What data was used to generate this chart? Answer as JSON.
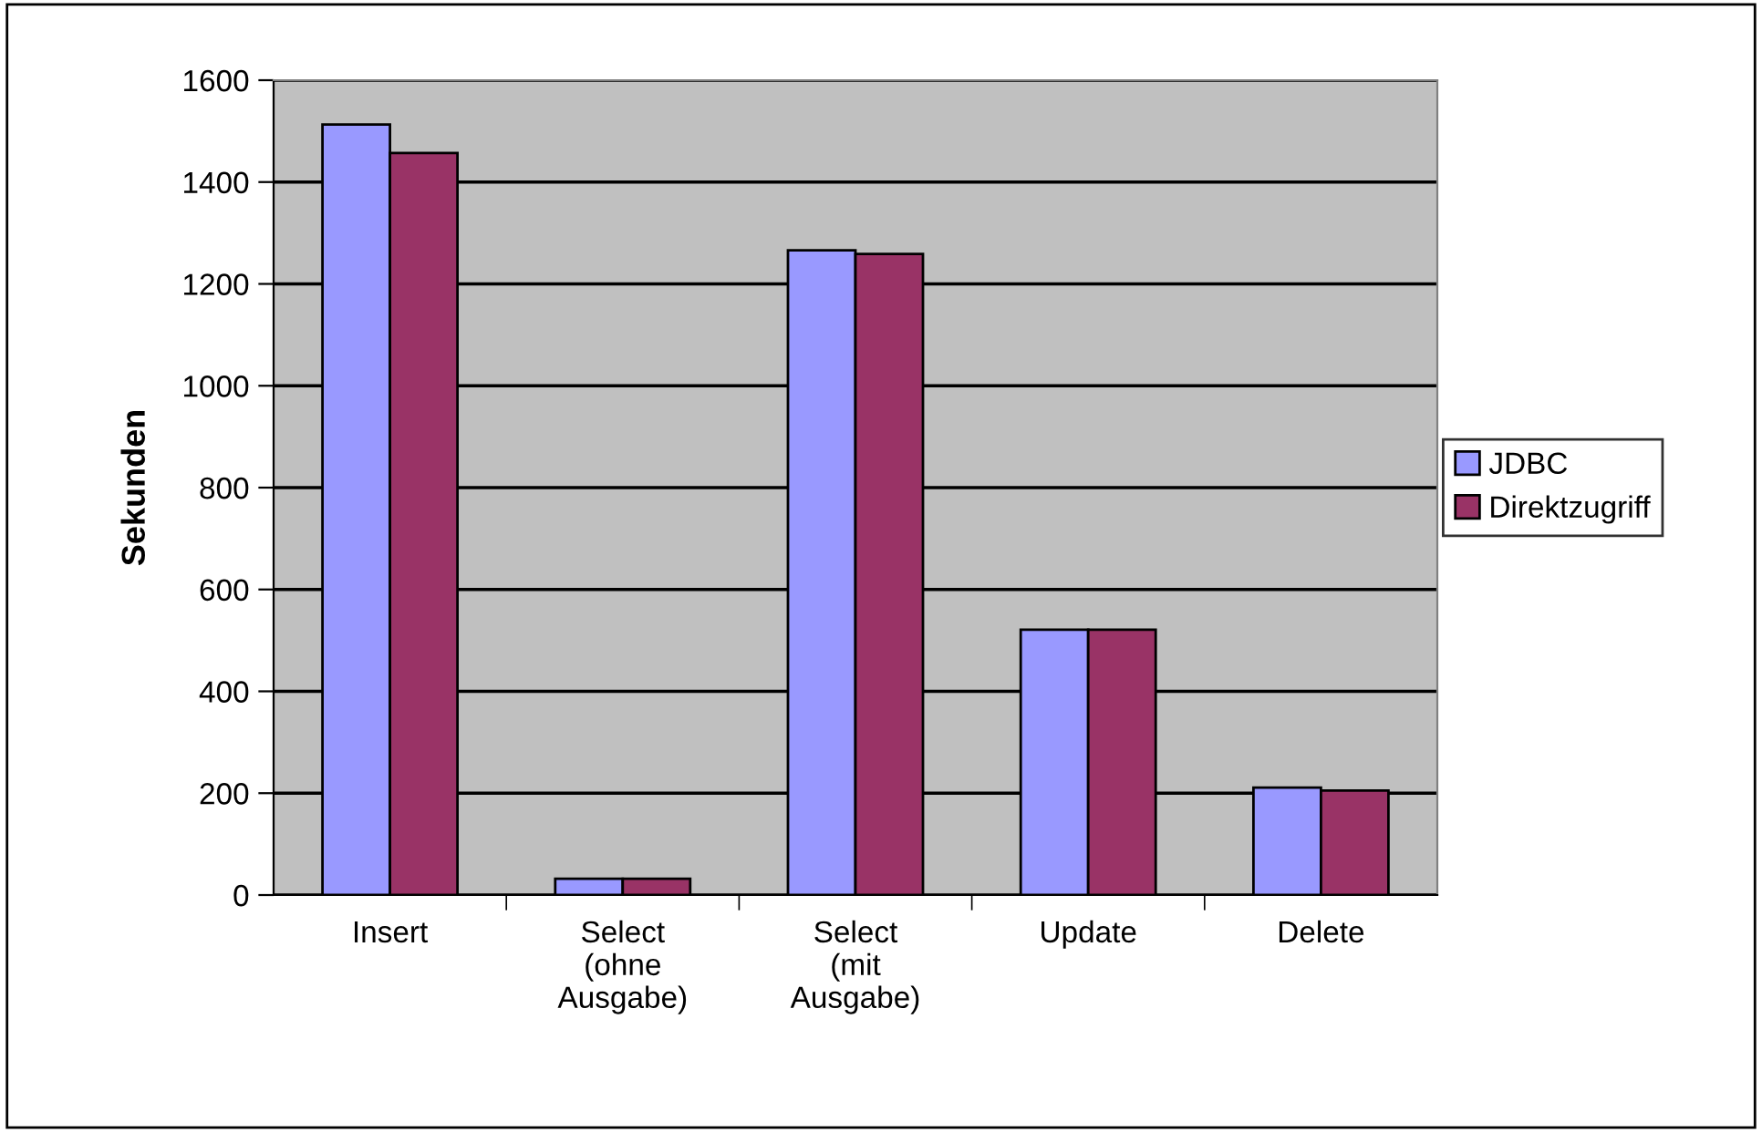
{
  "chart_data": {
    "type": "bar",
    "ylabel": "Sekunden",
    "categories": [
      "Insert",
      "Select\n(ohne\nAusgabe)",
      "Select\n(mit\nAusgabe)",
      "Update",
      "Delete"
    ],
    "series": [
      {
        "name": "JDBC",
        "color": "#9999ff",
        "values": [
          1513,
          32,
          1266,
          521,
          211
        ]
      },
      {
        "name": "Direktzugriff",
        "color": "#993366",
        "values": [
          1457,
          32,
          1259,
          521,
          205
        ]
      }
    ],
    "ylim": [
      0,
      1600
    ],
    "yticks": [
      0,
      200,
      400,
      600,
      800,
      1000,
      1200,
      1400,
      1600
    ],
    "grid": "y",
    "legend": "right"
  }
}
